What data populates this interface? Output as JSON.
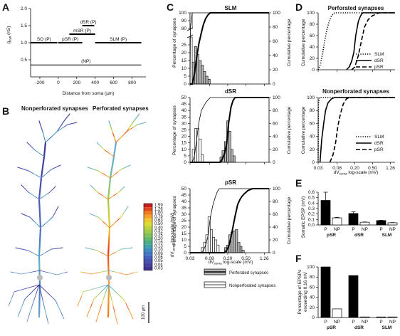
{
  "panel_labels": [
    "A",
    "B",
    "C",
    "D",
    "E",
    "F"
  ],
  "colors": {
    "ink": "#000000",
    "gray_bar": "#b5b5b5",
    "white_bar": "#ffffff"
  },
  "colorbar": {
    "title": "dV",
    "title_sub": "soma",
    "title_rest": " log-scale (mV)",
    "labels": [
      "1.59",
      "1.26",
      "1.00",
      "0.79",
      "0.63",
      "0.50",
      "0.40",
      "0.32",
      "0.25",
      "0.20",
      "0.16",
      "0.13",
      "0.10",
      "0.08",
      "0.06",
      "0.05",
      "0.04",
      "0.03"
    ],
    "colors": [
      "#c62020",
      "#e0481c",
      "#f07a1e",
      "#f5a22a",
      "#eec832",
      "#dbdb3a",
      "#bcd33c",
      "#9fcb48",
      "#7fc15a",
      "#63b86e",
      "#4cac88",
      "#42a0a8",
      "#3f8dbe",
      "#4078c2",
      "#4262bb",
      "#4650b0",
      "#4640a0",
      "#413090"
    ]
  },
  "panel_B": {
    "left_title": "Nonperforated synapses",
    "right_title": "Perforated synapses",
    "scalebar": "100 µm"
  },
  "legend_C": {
    "perforated": "Perforated synapses",
    "nonperforated": "Nonperforated synapses"
  },
  "chart_data": [
    {
      "panel": "A",
      "type": "line",
      "xlabel": "Distance from soma (µm)",
      "ylabel": "g",
      "ylabel_sub": "syn",
      "ylabel_rest": " (nS)",
      "xlim": [
        -300,
        950
      ],
      "ylim": [
        0,
        2.0
      ],
      "xticks": [
        -200,
        0,
        200,
        400,
        600,
        800
      ],
      "yticks": [
        0.5,
        1.0,
        1.5,
        2.0
      ],
      "segments": [
        {
          "label": "SO (P)",
          "x": [
            -300,
            -10
          ],
          "y": 1.0
        },
        {
          "label": "pSR (P)",
          "x": [
            0,
            260
          ],
          "y": 1.0
        },
        {
          "label": "mSR (P)",
          "x": [
            120,
            400
          ],
          "y": 1.25
        },
        {
          "label": "dSR (P)",
          "x": [
            260,
            390
          ],
          "y": 1.5
        },
        {
          "label": "SLM (P)",
          "x": [
            400,
            900
          ],
          "y": 1.0
        },
        {
          "label": "(NP)",
          "x": [
            -300,
            900
          ],
          "y": 0.35
        }
      ]
    },
    {
      "panel": "C-SLM",
      "type": "bar",
      "title": "SLM",
      "ylabel": "Percentage of synapses",
      "ylabel_right": "Cumulative percentage",
      "upper_ylim": [
        80,
        100
      ],
      "upper_yticks": [
        80,
        90,
        100
      ],
      "lower_ylim": [
        0,
        30
      ],
      "lower_yticks": [
        0,
        5,
        10,
        15,
        20,
        25
      ],
      "right_yticks": [
        0,
        20,
        40,
        60,
        80,
        100
      ],
      "perforated_bins": [
        [
          0.0335,
          0.0375,
          14
        ],
        [
          0.0375,
          0.042,
          24
        ],
        [
          0.042,
          0.047,
          19
        ],
        [
          0.047,
          0.053,
          15
        ],
        [
          0.053,
          0.059,
          12
        ],
        [
          0.059,
          0.066,
          8
        ],
        [
          0.066,
          0.074,
          5
        ],
        [
          0.074,
          0.083,
          3
        ]
      ],
      "nonperforated_bins": [
        [
          0.03,
          0.0335,
          100
        ]
      ],
      "perforated_cumulative": [
        [
          0.03,
          0
        ],
        [
          0.0335,
          0
        ],
        [
          0.0375,
          14
        ],
        [
          0.042,
          38
        ],
        [
          0.047,
          57
        ],
        [
          0.053,
          72
        ],
        [
          0.059,
          84
        ],
        [
          0.066,
          92
        ],
        [
          0.074,
          97
        ],
        [
          0.083,
          100
        ],
        [
          1.6,
          100
        ]
      ],
      "nonperforated_cumulative": [
        [
          0.03,
          0
        ],
        [
          0.0305,
          80
        ],
        [
          0.0335,
          100
        ],
        [
          1.6,
          100
        ]
      ]
    },
    {
      "panel": "C-dSR",
      "type": "bar",
      "title": "dSR",
      "ylabel": "Percentage of synapses",
      "ylabel_right": "Cumulative percentage",
      "ylim": [
        0,
        50
      ],
      "yticks": [
        0,
        5,
        10,
        15,
        20,
        25,
        30,
        35,
        40,
        45,
        50
      ],
      "right_yticks": [
        0,
        20,
        40,
        60,
        80,
        100
      ],
      "perforated_bins": [
        [
          0.135,
          0.15,
          4
        ],
        [
          0.15,
          0.17,
          9
        ],
        [
          0.17,
          0.19,
          16
        ],
        [
          0.19,
          0.21,
          32
        ],
        [
          0.21,
          0.235,
          24
        ],
        [
          0.235,
          0.26,
          10
        ],
        [
          0.26,
          0.29,
          5
        ]
      ],
      "nonperforated_bins": [
        [
          0.0335,
          0.0375,
          10
        ],
        [
          0.0375,
          0.042,
          26
        ],
        [
          0.042,
          0.047,
          26
        ],
        [
          0.047,
          0.053,
          18
        ],
        [
          0.053,
          0.059,
          6
        ]
      ],
      "perforated_cumulative": [
        [
          0.03,
          0
        ],
        [
          0.135,
          0
        ],
        [
          0.15,
          4
        ],
        [
          0.17,
          13
        ],
        [
          0.19,
          29
        ],
        [
          0.21,
          61
        ],
        [
          0.235,
          85
        ],
        [
          0.26,
          95
        ],
        [
          0.29,
          100
        ],
        [
          1.6,
          100
        ]
      ],
      "nonperforated_cumulative": [
        [
          0.03,
          0
        ],
        [
          0.0335,
          0
        ],
        [
          0.0375,
          10
        ],
        [
          0.042,
          36
        ],
        [
          0.047,
          62
        ],
        [
          0.053,
          80
        ],
        [
          0.059,
          86
        ],
        [
          0.066,
          92
        ],
        [
          0.074,
          96
        ],
        [
          0.083,
          100
        ],
        [
          1.6,
          100
        ]
      ]
    },
    {
      "panel": "C-pSR",
      "type": "bar",
      "title": "pSR",
      "ylabel": "Percentage of synapses",
      "ylabel_right": "Cumulative percentage",
      "xlabel": "dV",
      "xlabel_sub": "soma",
      "xlabel_rest": " log-scale (mV)",
      "ylim": [
        0,
        50
      ],
      "yticks": [
        0,
        5,
        10,
        15,
        20,
        25,
        30,
        35,
        40,
        45,
        50
      ],
      "right_yticks": [
        0,
        20,
        40,
        60,
        80,
        100
      ],
      "xticks": [
        0.03,
        0.08,
        0.2,
        0.5,
        1.26
      ],
      "perforated_bins": [
        [
          0.17,
          0.19,
          4
        ],
        [
          0.19,
          0.21,
          6
        ],
        [
          0.21,
          0.235,
          14
        ],
        [
          0.235,
          0.26,
          16
        ],
        [
          0.26,
          0.29,
          17
        ],
        [
          0.29,
          0.33,
          18
        ],
        [
          0.33,
          0.37,
          8
        ],
        [
          0.37,
          0.41,
          5
        ],
        [
          0.41,
          0.46,
          2
        ]
      ],
      "nonperforated_bins": [
        [
          0.053,
          0.059,
          4
        ],
        [
          0.059,
          0.066,
          8
        ],
        [
          0.066,
          0.074,
          14
        ],
        [
          0.074,
          0.083,
          28
        ],
        [
          0.083,
          0.093,
          18
        ],
        [
          0.093,
          0.104,
          12
        ],
        [
          0.104,
          0.116,
          10
        ],
        [
          0.116,
          0.13,
          6
        ]
      ],
      "perforated_cumulative": [
        [
          0.03,
          0
        ],
        [
          0.17,
          0
        ],
        [
          0.19,
          4
        ],
        [
          0.21,
          10
        ],
        [
          0.235,
          24
        ],
        [
          0.26,
          40
        ],
        [
          0.29,
          57
        ],
        [
          0.33,
          75
        ],
        [
          0.37,
          83
        ],
        [
          0.41,
          88
        ],
        [
          0.46,
          92
        ],
        [
          0.55,
          97
        ],
        [
          0.7,
          100
        ],
        [
          1.6,
          100
        ]
      ],
      "nonperforated_cumulative": [
        [
          0.03,
          0
        ],
        [
          0.053,
          0
        ],
        [
          0.059,
          4
        ],
        [
          0.066,
          12
        ],
        [
          0.074,
          26
        ],
        [
          0.083,
          54
        ],
        [
          0.093,
          72
        ],
        [
          0.104,
          84
        ],
        [
          0.116,
          94
        ],
        [
          0.13,
          100
        ],
        [
          1.6,
          100
        ]
      ]
    },
    {
      "panel": "D-perforated",
      "type": "line",
      "title": "Perforated synapses",
      "ylabel": "Cumulative percentage",
      "ylim": [
        0,
        100
      ],
      "yticks": [
        0,
        20,
        40,
        60,
        80,
        100
      ],
      "series": [
        {
          "name": "SLM",
          "style": "dotted",
          "points": [
            [
              0.03,
              0
            ],
            [
              0.034,
              10
            ],
            [
              0.038,
              30
            ],
            [
              0.042,
              50
            ],
            [
              0.047,
              70
            ],
            [
              0.053,
              85
            ],
            [
              0.06,
              95
            ],
            [
              0.07,
              100
            ],
            [
              1.6,
              100
            ]
          ]
        },
        {
          "name": "dSR",
          "style": "solid",
          "points": [
            [
              0.13,
              0
            ],
            [
              0.15,
              5
            ],
            [
              0.17,
              15
            ],
            [
              0.19,
              30
            ],
            [
              0.21,
              60
            ],
            [
              0.24,
              85
            ],
            [
              0.27,
              95
            ],
            [
              0.3,
              100
            ],
            [
              1.6,
              100
            ]
          ]
        },
        {
          "name": "pSR",
          "style": "dashed",
          "points": [
            [
              0.17,
              0
            ],
            [
              0.2,
              5
            ],
            [
              0.24,
              25
            ],
            [
              0.28,
              50
            ],
            [
              0.33,
              75
            ],
            [
              0.4,
              88
            ],
            [
              0.5,
              95
            ],
            [
              0.7,
              100
            ],
            [
              1.6,
              100
            ]
          ]
        }
      ]
    },
    {
      "panel": "D-nonperforated",
      "type": "line",
      "title": "Nonperforated synapses",
      "ylabel": "Cumulative percentage",
      "xlabel": "dV",
      "xlabel_sub": "soma",
      "xlabel_rest": " log-scale (mV)",
      "ylim": [
        0,
        100
      ],
      "yticks": [
        0,
        20,
        40,
        60,
        80,
        100
      ],
      "xticks": [
        0.03,
        0.08,
        0.2,
        0.5,
        1.26
      ],
      "xticklabels": [
        "0.03",
        "0.08",
        "0.20",
        "0.50",
        "1.26"
      ],
      "series": [
        {
          "name": "SLM",
          "style": "dotted",
          "points": [
            [
              0.03,
              0
            ],
            [
              0.0305,
              90
            ],
            [
              0.032,
              100
            ],
            [
              1.6,
              100
            ]
          ]
        },
        {
          "name": "dSR",
          "style": "solid",
          "points": [
            [
              0.033,
              0
            ],
            [
              0.036,
              35
            ],
            [
              0.04,
              60
            ],
            [
              0.044,
              80
            ],
            [
              0.05,
              92
            ],
            [
              0.06,
              98
            ],
            [
              0.07,
              100
            ],
            [
              1.6,
              100
            ]
          ]
        },
        {
          "name": "pSR",
          "style": "dashed",
          "points": [
            [
              0.055,
              0
            ],
            [
              0.065,
              12
            ],
            [
              0.074,
              30
            ],
            [
              0.083,
              55
            ],
            [
              0.095,
              75
            ],
            [
              0.11,
              90
            ],
            [
              0.13,
              98
            ],
            [
              0.15,
              100
            ],
            [
              1.6,
              100
            ]
          ]
        }
      ]
    },
    {
      "panel": "E",
      "type": "bar",
      "ylabel": "Somatic EPSP (mV)",
      "ylim": [
        0,
        0.6
      ],
      "yticks": [
        0,
        0.1,
        0.2,
        0.3,
        0.4,
        0.5,
        0.6
      ],
      "groups": [
        "pSR",
        "dSR",
        "SLM"
      ],
      "bar_labels": [
        "P",
        "NP",
        "P",
        "NP",
        "P",
        "NP"
      ],
      "values": [
        0.45,
        0.13,
        0.21,
        0.05,
        0.08,
        0.04
      ],
      "errors": [
        0.15,
        0.01,
        0.03,
        0.005,
        0.005,
        0.004
      ],
      "fills": [
        "black",
        "white",
        "black",
        "white",
        "black",
        "white"
      ]
    },
    {
      "panel": "F",
      "type": "bar",
      "ylabel": "Percentage of EPSPs exceeding 0.16 mV",
      "ylabel_lines": [
        "Percentage of EPSPs",
        "exceeding 0.16 mV"
      ],
      "ylim": [
        0,
        100
      ],
      "yticks": [
        0,
        20,
        40,
        60,
        80,
        100
      ],
      "groups": [
        "pSR",
        "dSR",
        "SLM"
      ],
      "bar_labels": [
        "P",
        "NP",
        "P",
        "NP",
        "P",
        "NP"
      ],
      "values": [
        100,
        17,
        83,
        1,
        1,
        1
      ],
      "fills": [
        "black",
        "white",
        "black",
        "white",
        "black",
        "white"
      ]
    }
  ]
}
